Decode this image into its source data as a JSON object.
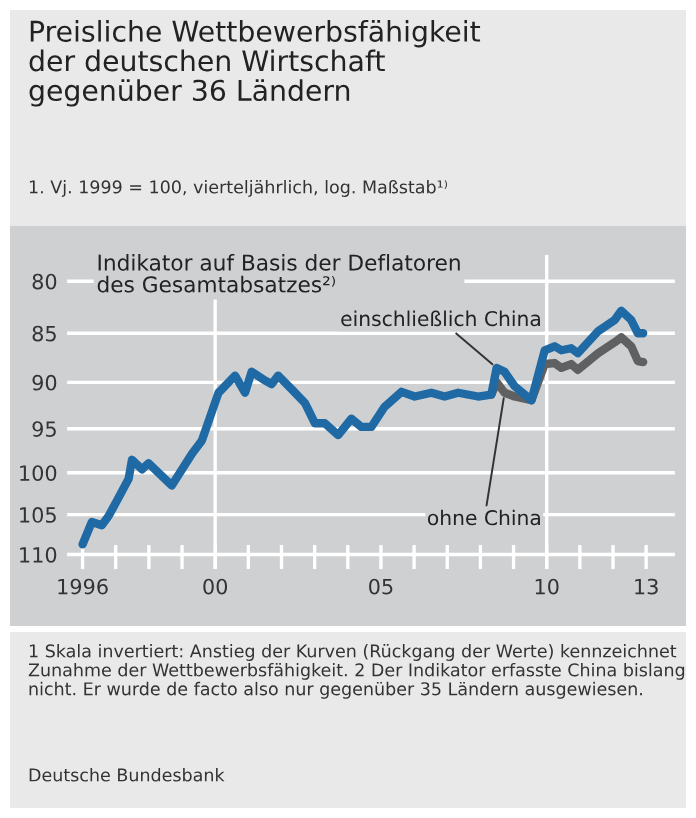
{
  "chart_data": {
    "type": "line",
    "title": "Preisliche Wettbewerbsfähigkeit\nder deutschen Wirtschaft\ngegenüber 36 Ländern",
    "subtitle": "1. Vj. 1999 = 100, vierteljährlich, log. Maßstab¹⁾",
    "annotations": [
      "Indikator auf Basis der Deflatoren\ndes Gesamtabsatzes²⁾",
      "1 Skala invertiert: Anstieg der Kurven (Rückgang der Werte) kennzeichnet Zunahme der Wettbewerbsfähigkeit. 2 Der Indikator erfasste China bislang nicht. Er wurde de facto also nur gegenüber 35 Ländern ausgewiesen.",
      "Deutsche Bundesbank"
    ],
    "series": [
      {
        "name": "ohne China",
        "color": "#5f6062",
        "x": [
          2008.33,
          2008.49,
          2008.73,
          2009.03,
          2009.54,
          2009.94,
          2010.24,
          2010.44,
          2010.74,
          2010.94,
          2011.55,
          2012.05,
          2012.25,
          2012.55,
          2012.75,
          2012.91
        ],
        "values": [
          91.3,
          90,
          91.1,
          91.5,
          91.9,
          88.1,
          88,
          88.5,
          88.1,
          88.7,
          87,
          85.9,
          85.4,
          86.3,
          87.8,
          87.9
        ]
      },
      {
        "name": "einschließlich China",
        "color": "#1f6aa5",
        "x": [
          1996.0,
          1996.28,
          1996.58,
          1996.78,
          1997.08,
          1997.39,
          1997.49,
          1997.79,
          1997.99,
          1998.69,
          1999.3,
          1999.6,
          2000.1,
          2000.6,
          2000.9,
          2001.1,
          2001.5,
          2001.7,
          2001.9,
          2002.3,
          2002.71,
          2003.01,
          2003.31,
          2003.71,
          2004.11,
          2004.41,
          2004.71,
          2005.11,
          2005.62,
          2006.02,
          2006.52,
          2006.92,
          2007.33,
          2007.93,
          2008.33,
          2008.49,
          2008.73,
          2009.03,
          2009.54,
          2009.94,
          2010.24,
          2010.44,
          2010.74,
          2010.94,
          2011.55,
          2012.05,
          2012.25,
          2012.55,
          2012.75,
          2012.91
        ],
        "values": [
          108.7,
          105.9,
          106.3,
          105.2,
          103,
          100.7,
          98.5,
          99.6,
          98.9,
          101.5,
          97.8,
          96.3,
          91.1,
          89.3,
          91.1,
          88.9,
          89.8,
          90.2,
          89.3,
          90.7,
          92.2,
          94.4,
          94.4,
          95.7,
          93.9,
          94.8,
          94.8,
          92.6,
          91,
          91.5,
          91.1,
          91.5,
          91.1,
          91.5,
          91.3,
          88.5,
          88.9,
          90.4,
          91.9,
          86.7,
          86.3,
          86.7,
          86.5,
          87,
          84.8,
          83.7,
          82.8,
          83.7,
          85,
          85
        ]
      }
    ],
    "log": "y",
    "ylim": [
      112,
      77.5
    ],
    "yticks": [
      80,
      85,
      90,
      95,
      100,
      105,
      110
    ],
    "xlim": [
      1995.5,
      2013.9
    ],
    "xticks": [
      {
        "value": 1996,
        "label": "1996"
      },
      {
        "value": 1997,
        "label": null
      },
      {
        "value": 1998,
        "label": null
      },
      {
        "value": 1999,
        "label": null
      },
      {
        "value": 2000,
        "label": "00"
      },
      {
        "value": 2001,
        "label": null
      },
      {
        "value": 2002,
        "label": null
      },
      {
        "value": 2003,
        "label": null
      },
      {
        "value": 2004,
        "label": null
      },
      {
        "value": 2005,
        "label": "05"
      },
      {
        "value": 2006,
        "label": null
      },
      {
        "value": 2007,
        "label": null
      },
      {
        "value": 2008,
        "label": null
      },
      {
        "value": 2009,
        "label": null
      },
      {
        "value": 2010,
        "label": "10"
      },
      {
        "value": 2011,
        "label": null
      },
      {
        "value": 2012,
        "label": null
      },
      {
        "value": 2013,
        "label": "13"
      }
    ],
    "ref_lines": [
      {
        "axis": "x",
        "value": 2000,
        "color": "#ffffff"
      },
      {
        "axis": "x",
        "value": 2010,
        "color": "#ffffff"
      }
    ],
    "grid": "y",
    "legend": false,
    "marker": "none",
    "line_style": "solid"
  }
}
